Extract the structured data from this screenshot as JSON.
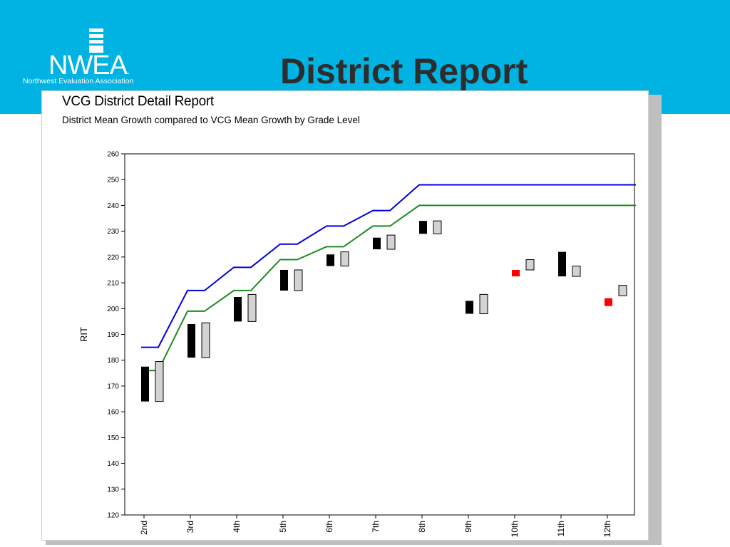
{
  "slide": {
    "title": "District Report",
    "logo": {
      "name": "NWEA",
      "trademark": ".",
      "tagline": "Northwest Evaluation Association"
    },
    "colors": {
      "band": "#00b3e3",
      "title": "#2d2d2d"
    }
  },
  "report": {
    "title": "VCG District Detail Report",
    "subtitle": "District Mean Growth compared to VCG Mean Growth by Grade Level"
  },
  "chart_data": {
    "type": "line",
    "ylabel": "RIT",
    "xlabel": "",
    "ylim": [
      120,
      260
    ],
    "yticks": [
      120,
      130,
      140,
      150,
      160,
      170,
      180,
      190,
      200,
      210,
      220,
      230,
      240,
      250,
      260
    ],
    "categories": [
      "2nd",
      "3rd",
      "4th",
      "5th",
      "6th",
      "7th",
      "8th",
      "9th",
      "10th",
      "11th",
      "12th"
    ],
    "grid": false,
    "legend": "none",
    "lines": [
      {
        "color": "#0000e0",
        "values": [
          185,
          207,
          216,
          225,
          232,
          238,
          248,
          248,
          248,
          248,
          248
        ]
      },
      {
        "color": "#1e8a1e",
        "values": [
          176,
          199,
          207,
          219,
          224,
          232,
          240,
          240,
          240,
          240,
          240
        ]
      }
    ],
    "bars": [
      {
        "district": [
          164,
          177.5
        ],
        "vcg": [
          164,
          179.5
        ],
        "district_color": "#000000"
      },
      {
        "district": [
          181,
          194
        ],
        "vcg": [
          181,
          194.5
        ],
        "district_color": "#000000"
      },
      {
        "district": [
          195,
          204.5
        ],
        "vcg": [
          195,
          205.5
        ],
        "district_color": "#000000"
      },
      {
        "district": [
          207,
          215
        ],
        "vcg": [
          207,
          215
        ],
        "district_color": "#000000"
      },
      {
        "district": [
          216.5,
          221
        ],
        "vcg": [
          216.5,
          222
        ],
        "district_color": "#000000"
      },
      {
        "district": [
          223,
          227.5
        ],
        "vcg": [
          223,
          228.5
        ],
        "district_color": "#000000"
      },
      {
        "district": [
          229,
          234
        ],
        "vcg": [
          229,
          234
        ],
        "district_color": "#000000"
      },
      {
        "district": [
          198,
          203
        ],
        "vcg": [
          198,
          205.5
        ],
        "district_color": "#000000"
      },
      {
        "district": [
          212.5,
          215
        ],
        "vcg": [
          215,
          219
        ],
        "district_color": "#ff0000"
      },
      {
        "district": [
          212.5,
          222
        ],
        "vcg": [
          212.5,
          216.5
        ],
        "district_color": "#000000"
      },
      {
        "district": [
          201,
          204
        ],
        "vcg": [
          205,
          209
        ],
        "district_color": "#ff0000"
      }
    ],
    "vcg_bar_fill": "#d3d3d3"
  }
}
